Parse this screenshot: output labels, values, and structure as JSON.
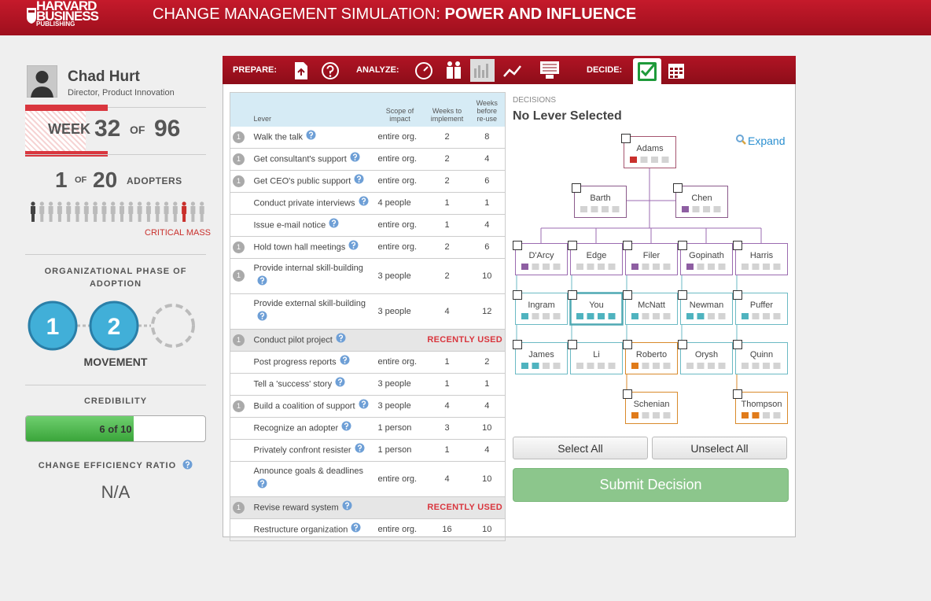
{
  "header": {
    "logo": [
      "HARVARD",
      "BUSINESS",
      "PUBLISHING"
    ],
    "title": "CHANGE MANAGEMENT SIMULATION:",
    "title_bold": "POWER AND INFLUENCE"
  },
  "profile": {
    "name": "Chad Hurt",
    "role": "Director, Product Innovation"
  },
  "week": {
    "label": "WEEK",
    "current": 32,
    "of": "OF",
    "total": 96
  },
  "adopters": {
    "count": 1,
    "of": "OF",
    "total": 20,
    "label": "ADOPTERS",
    "critical_mass_label": "CRITICAL MASS",
    "critical_mass_at": 18
  },
  "phase": {
    "title": "ORGANIZATIONAL PHASE OF ADOPTION",
    "steps": [
      1,
      2
    ],
    "name": "MOVEMENT"
  },
  "credibility": {
    "title": "CREDIBILITY",
    "value": 6,
    "max": 10,
    "label": "6 of 10"
  },
  "efficiency": {
    "title": "CHANGE EFFICIENCY RATIO",
    "value": "N/A"
  },
  "toolbar": {
    "prepare": "PREPARE:",
    "analyze": "ANALYZE:",
    "decide": "DECIDE:"
  },
  "table": {
    "headers": [
      "Lever",
      "Scope of impact",
      "Weeks to implement",
      "Weeks before re-use"
    ],
    "rows": [
      {
        "badge": 1,
        "lever": "Walk the talk",
        "scope": "entire org.",
        "implement": 2,
        "reuse": 8
      },
      {
        "badge": 1,
        "lever": "Get consultant's support",
        "scope": "entire org.",
        "implement": 2,
        "reuse": 4
      },
      {
        "badge": 1,
        "lever": "Get CEO's public support",
        "scope": "entire org.",
        "implement": 2,
        "reuse": 6
      },
      {
        "lever": "Conduct private interviews",
        "scope": "4 people",
        "implement": 1,
        "reuse": 1
      },
      {
        "lever": "Issue e-mail notice",
        "scope": "entire org.",
        "implement": 1,
        "reuse": 4
      },
      {
        "badge": 1,
        "lever": "Hold town hall meetings",
        "scope": "entire org.",
        "implement": 2,
        "reuse": 6
      },
      {
        "badge": 1,
        "lever": "Provide internal skill-building",
        "scope": "3 people",
        "implement": 2,
        "reuse": 10
      },
      {
        "lever": "Provide external skill-building",
        "scope": "3 people",
        "implement": 4,
        "reuse": 12
      },
      {
        "badge": 1,
        "lever": "Conduct pilot project",
        "status": "RECENTLY USED"
      },
      {
        "lever": "Post progress reports",
        "scope": "entire org.",
        "implement": 1,
        "reuse": 2
      },
      {
        "lever": "Tell a 'success' story",
        "scope": "3 people",
        "implement": 1,
        "reuse": 1
      },
      {
        "badge": 1,
        "lever": "Build a coalition of support",
        "scope": "3 people",
        "implement": 4,
        "reuse": 4
      },
      {
        "lever": "Recognize an adopter",
        "scope": "1 person",
        "implement": 3,
        "reuse": 10
      },
      {
        "lever": "Privately confront resister",
        "scope": "1 person",
        "implement": 1,
        "reuse": 4
      },
      {
        "lever": "Announce goals & deadlines",
        "scope": "entire org.",
        "implement": 4,
        "reuse": 10
      },
      {
        "badge": 1,
        "lever": "Revise reward system",
        "status": "RECENTLY USED"
      },
      {
        "lever": "Restructure organization",
        "scope": "entire org.",
        "implement": 16,
        "reuse": 10
      }
    ]
  },
  "decisions": {
    "label": "DECISIONS",
    "selection": "No Lever Selected",
    "expand": "Expand"
  },
  "org": {
    "nodes": [
      {
        "name": "Adams",
        "border": "#a5546f",
        "mark": "#c9302c",
        "filled": 1
      },
      {
        "name": "Barth",
        "border": "#8b5a8b",
        "mark": "#8e5ea2",
        "filled": 0
      },
      {
        "name": "Chen",
        "border": "#8b5a8b",
        "mark": "#8e5ea2",
        "filled": 1
      },
      {
        "name": "D'Arcy",
        "border": "#9b6bb0",
        "mark": "#8e5ea2",
        "filled": 1
      },
      {
        "name": "Edge",
        "border": "#9b6bb0",
        "mark": "#8e5ea2",
        "filled": 0
      },
      {
        "name": "Filer",
        "border": "#9b6bb0",
        "mark": "#8e5ea2",
        "filled": 1
      },
      {
        "name": "Gopinath",
        "border": "#9b6bb0",
        "mark": "#8e5ea2",
        "filled": 1
      },
      {
        "name": "Harris",
        "border": "#9b6bb0",
        "mark": "#8e5ea2",
        "filled": 0
      },
      {
        "name": "Ingram",
        "border": "#6bbac4",
        "mark": "#4fb3bf",
        "filled": 1
      },
      {
        "name": "You",
        "border": "#4fa9b3",
        "mark": "#4fb3bf",
        "filled": 4
      },
      {
        "name": "McNatt",
        "border": "#6bbac4",
        "mark": "#4fb3bf",
        "filled": 1
      },
      {
        "name": "Newman",
        "border": "#6bbac4",
        "mark": "#4fb3bf",
        "filled": 2
      },
      {
        "name": "Puffer",
        "border": "#6bbac4",
        "mark": "#4fb3bf",
        "filled": 1
      },
      {
        "name": "James",
        "border": "#6bbac4",
        "mark": "#4fb3bf",
        "filled": 2
      },
      {
        "name": "Li",
        "border": "#6bbac4",
        "mark": "#4fb3bf",
        "filled": 0
      },
      {
        "name": "Roberto",
        "border": "#d98a2b",
        "mark": "#e07b1a",
        "filled": 1
      },
      {
        "name": "Orysh",
        "border": "#6bbac4",
        "mark": "#4fb3bf",
        "filled": 0
      },
      {
        "name": "Quinn",
        "border": "#6bbac4",
        "mark": "#4fb3bf",
        "filled": 0
      },
      {
        "name": "Schenian",
        "border": "#d98a2b",
        "mark": "#e07b1a",
        "filled": 1
      },
      {
        "name": "Thompson",
        "border": "#d98a2b",
        "mark": "#e07b1a",
        "filled": 2
      }
    ]
  },
  "buttons": {
    "select_all": "Select All",
    "unselect_all": "Unselect All",
    "submit": "Submit Decision"
  }
}
